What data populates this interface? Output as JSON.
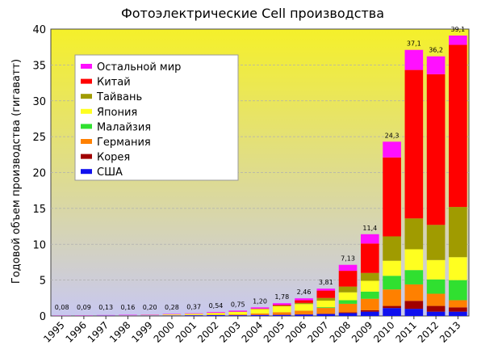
{
  "chart_data": {
    "type": "bar",
    "stacked": true,
    "title": "Фотоэлектрические Cell производства",
    "ylabel": "Годовой объем производства (гигаватт)",
    "xlabel": "",
    "ylim": [
      0,
      40
    ],
    "yticks": [
      0,
      5,
      10,
      15,
      20,
      25,
      30,
      35,
      40
    ],
    "grid": true,
    "legend_position": "top-left",
    "background_gradient": [
      "#f5f02a",
      "#c8c8f0"
    ],
    "categories": [
      "1995",
      "1996",
      "1997",
      "1998",
      "1999",
      "2000",
      "2001",
      "2002",
      "2003",
      "2004",
      "2005",
      "2006",
      "2007",
      "2008",
      "2009",
      "2010",
      "2011",
      "2012",
      "2013"
    ],
    "total_labels": [
      "0,08",
      "0,09",
      "0,13",
      "0,16",
      "0,20",
      "0,28",
      "0,37",
      "0,54",
      "0,75",
      "1,20",
      "1,78",
      "2,46",
      "3,81",
      "7,13",
      "11,4",
      "24,3",
      "37,1",
      "36,2",
      "39,1"
    ],
    "totals": [
      0.08,
      0.09,
      0.13,
      0.16,
      0.2,
      0.28,
      0.37,
      0.54,
      0.75,
      1.2,
      1.78,
      2.46,
      3.81,
      7.13,
      11.4,
      24.3,
      37.1,
      36.2,
      39.1
    ],
    "series": [
      {
        "name": "США",
        "color": "#1010ee",
        "values": [
          0.03,
          0.03,
          0.05,
          0.05,
          0.06,
          0.07,
          0.1,
          0.12,
          0.1,
          0.14,
          0.15,
          0.2,
          0.27,
          0.4,
          0.6,
          1.1,
          1.0,
          0.6,
          0.6
        ]
      },
      {
        "name": "Корея",
        "color": "#a00000",
        "values": [
          0,
          0,
          0,
          0,
          0,
          0,
          0,
          0,
          0.01,
          0.01,
          0.02,
          0.03,
          0.05,
          0.1,
          0.2,
          0.3,
          1.1,
          0.8,
          0.6
        ]
      },
      {
        "name": "Германия",
        "color": "#ff8000",
        "values": [
          0,
          0,
          0,
          0,
          0.01,
          0.02,
          0.03,
          0.05,
          0.1,
          0.2,
          0.35,
          0.5,
          0.8,
          1.2,
          1.6,
          2.3,
          2.3,
          1.7,
          1.0
        ]
      },
      {
        "name": "Малайзия",
        "color": "#30e030",
        "values": [
          0,
          0,
          0,
          0,
          0,
          0,
          0,
          0,
          0,
          0,
          0,
          0.01,
          0.1,
          0.5,
          1.0,
          1.9,
          2.0,
          2.0,
          2.8
        ]
      },
      {
        "name": "Япония",
        "color": "#ffff20",
        "values": [
          0.02,
          0.02,
          0.04,
          0.05,
          0.08,
          0.13,
          0.17,
          0.25,
          0.36,
          0.6,
          0.83,
          0.92,
          0.92,
          1.1,
          1.5,
          2.1,
          2.9,
          2.7,
          3.2
        ]
      },
      {
        "name": "Тайвань",
        "color": "#a09b00",
        "values": [
          0,
          0,
          0,
          0,
          0,
          0,
          0,
          0.01,
          0.02,
          0.04,
          0.08,
          0.16,
          0.37,
          0.8,
          1.1,
          3.4,
          4.3,
          4.9,
          7.0
        ]
      },
      {
        "name": "Китай",
        "color": "#ff0000",
        "values": [
          0,
          0,
          0,
          0,
          0,
          0,
          0.01,
          0.01,
          0.02,
          0.05,
          0.13,
          0.37,
          1.03,
          2.2,
          4.1,
          11.0,
          20.7,
          21.0,
          22.6
        ]
      },
      {
        "name": "Остальной мир",
        "color": "#ff10ff",
        "values": [
          0.03,
          0.04,
          0.04,
          0.06,
          0.05,
          0.06,
          0.06,
          0.1,
          0.14,
          0.16,
          0.22,
          0.27,
          0.27,
          0.83,
          1.3,
          2.2,
          2.8,
          2.5,
          1.3
        ]
      }
    ],
    "legend": [
      {
        "name": "Остальной мир",
        "color": "#ff10ff"
      },
      {
        "name": "Китай",
        "color": "#ff0000"
      },
      {
        "name": "Тайвань",
        "color": "#a09b00"
      },
      {
        "name": "Япония",
        "color": "#ffff20"
      },
      {
        "name": "Малайзия",
        "color": "#30e030"
      },
      {
        "name": "Германия",
        "color": "#ff8000"
      },
      {
        "name": "Корея",
        "color": "#a00000"
      },
      {
        "name": "США",
        "color": "#1010ee"
      }
    ]
  }
}
